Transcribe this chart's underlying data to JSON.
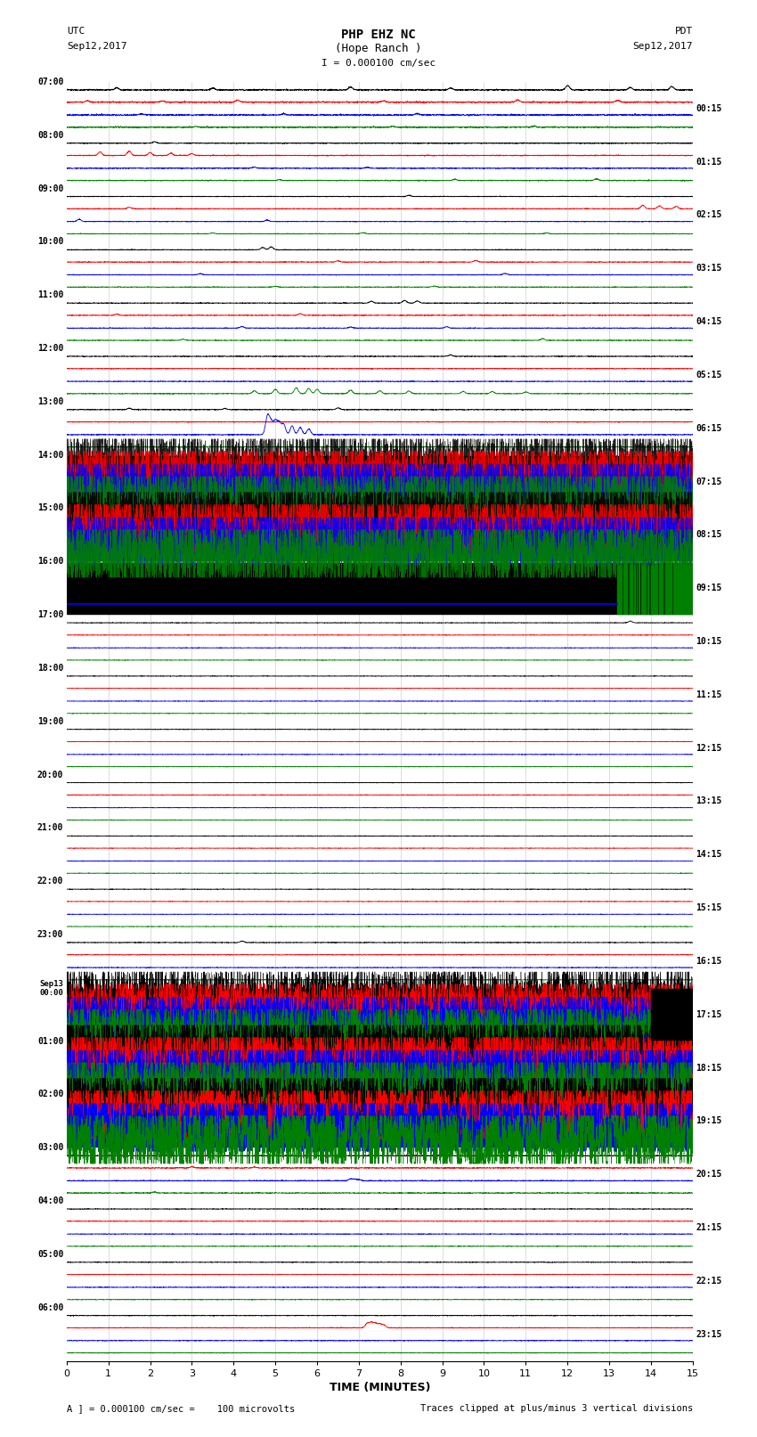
{
  "title_line1": "PHP EHZ NC",
  "title_line2": "(Hope Ranch )",
  "scale_label": "I = 0.000100 cm/sec",
  "utc_label": "UTC",
  "utc_date": "Sep12,2017",
  "pdt_label": "PDT",
  "pdt_date": "Sep12,2017",
  "xlabel": "TIME (MINUTES)",
  "footer_left": "A ] = 0.000100 cm/sec =    100 microvolts",
  "footer_right": "Traces clipped at plus/minus 3 vertical divisions",
  "bg_color": "#ffffff",
  "left_times": [
    "07:00",
    "08:00",
    "09:00",
    "10:00",
    "11:00",
    "12:00",
    "13:00",
    "14:00",
    "15:00",
    "16:00",
    "17:00",
    "18:00",
    "19:00",
    "20:00",
    "21:00",
    "22:00",
    "23:00",
    "Sep13\n00:00",
    "01:00",
    "02:00",
    "03:00",
    "04:00",
    "05:00",
    "06:00"
  ],
  "right_times": [
    "00:15",
    "01:15",
    "02:15",
    "03:15",
    "04:15",
    "05:15",
    "06:15",
    "07:15",
    "08:15",
    "09:15",
    "10:15",
    "11:15",
    "12:15",
    "13:15",
    "14:15",
    "15:15",
    "16:15",
    "17:15",
    "18:15",
    "19:15",
    "20:15",
    "21:15",
    "22:15",
    "23:15"
  ],
  "n_rows": 24,
  "trace_colors": [
    "#000000",
    "#ff0000",
    "#0000ff",
    "#008000"
  ],
  "xmin": 0,
  "xmax": 15
}
